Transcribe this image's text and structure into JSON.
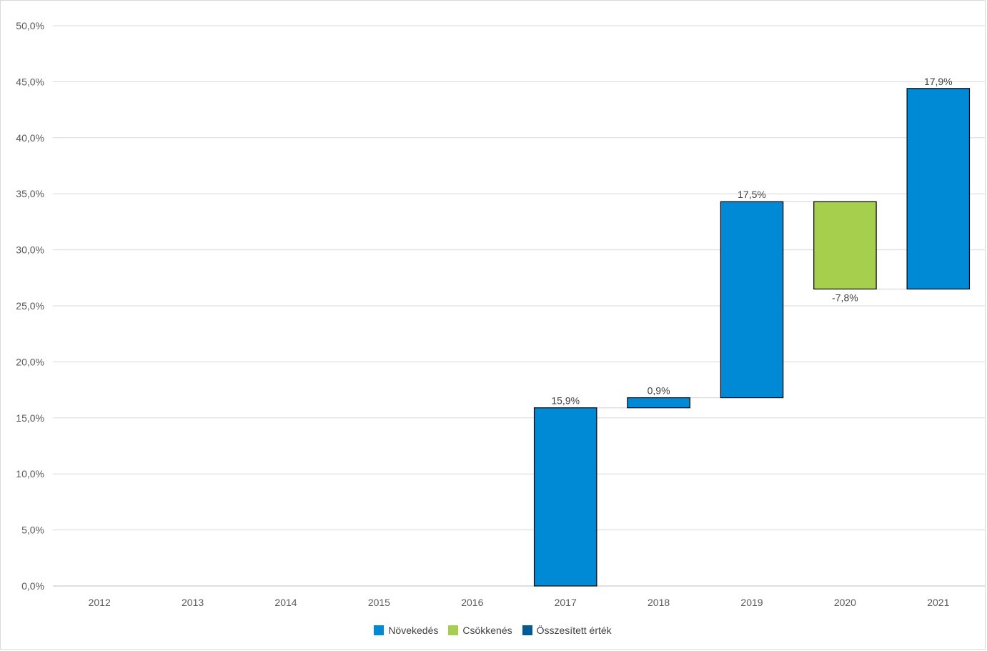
{
  "chart_data": {
    "type": "bar",
    "subtype": "waterfall",
    "title": "",
    "xlabel": "",
    "ylabel": "",
    "categories": [
      "2012",
      "2013",
      "2014",
      "2015",
      "2016",
      "2017",
      "2018",
      "2019",
      "2020",
      "2021"
    ],
    "ylim": [
      0,
      50
    ],
    "y_tick_labels": [
      "0,0%",
      "5,0%",
      "10,0%",
      "15,0%",
      "20,0%",
      "25,0%",
      "30,0%",
      "35,0%",
      "40,0%",
      "45,0%",
      "50,0%"
    ],
    "grid": true,
    "legend_position": "bottom",
    "bars": [
      {
        "category": "2017",
        "start": 0,
        "end": 15.9,
        "kind": "increase",
        "label": "15,9%"
      },
      {
        "category": "2018",
        "start": 15.9,
        "end": 16.8,
        "kind": "increase",
        "label": "0,9%"
      },
      {
        "category": "2019",
        "start": 16.8,
        "end": 34.3,
        "kind": "increase",
        "label": "17,5%"
      },
      {
        "category": "2020",
        "start": 34.3,
        "end": 26.5,
        "kind": "decrease",
        "label": "-7,8%"
      },
      {
        "category": "2021",
        "start": 26.5,
        "end": 44.4,
        "kind": "increase",
        "label": "17,9%"
      }
    ],
    "legend": [
      {
        "name": "Növekedés",
        "color": "#008ad5"
      },
      {
        "name": "Csökkenés",
        "color": "#a5cf4c"
      },
      {
        "name": "Összesített érték",
        "color": "#005b96"
      }
    ],
    "colors": {
      "increase": "#008ad5",
      "decrease": "#a5cf4c",
      "total": "#005b96"
    }
  }
}
